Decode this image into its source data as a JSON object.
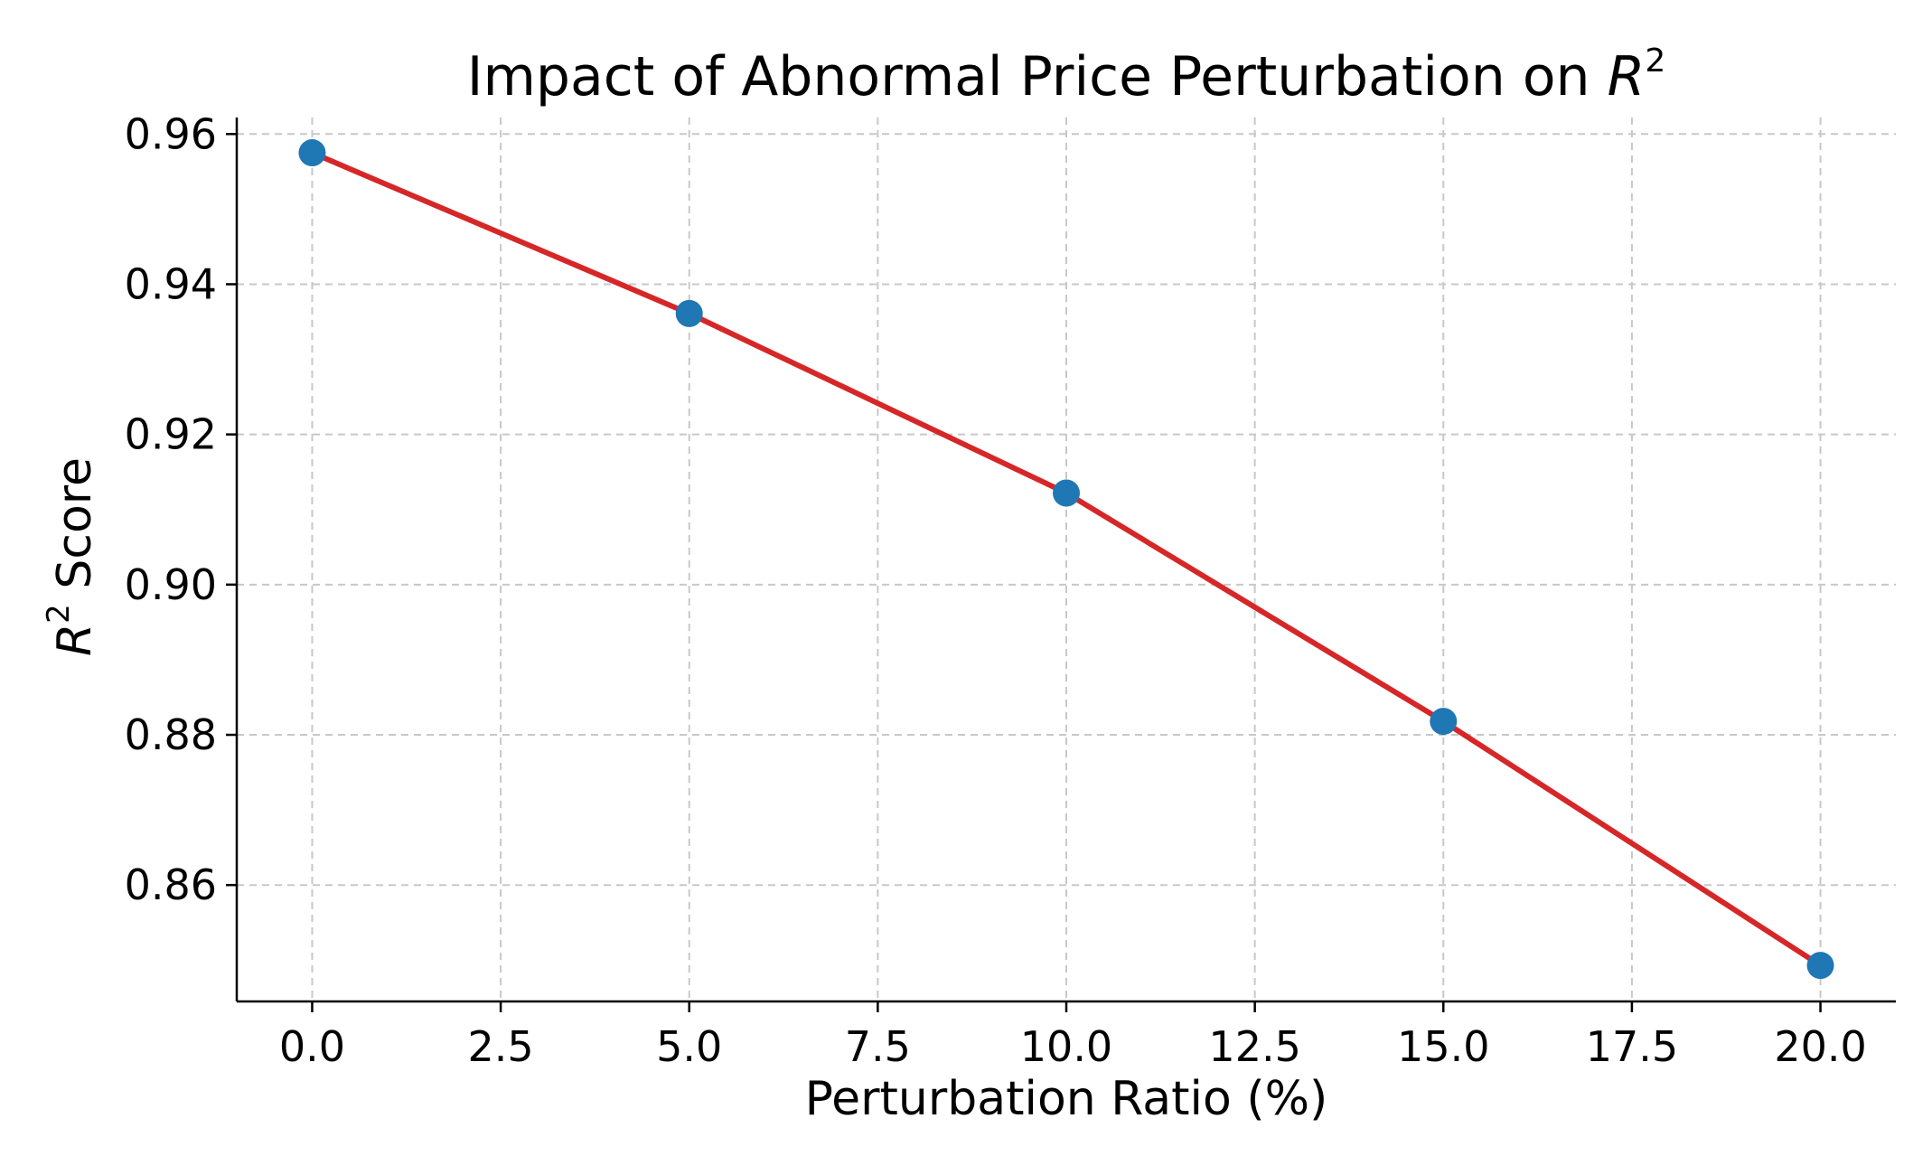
{
  "chart_data": {
    "type": "line",
    "title": "Impact of Abnormal Price Perturbation on ",
    "title_math": "R",
    "title_sup": "2",
    "xlabel": "Perturbation Ratio (%)",
    "ylabel_math": "R",
    "ylabel_sup": "2",
    "ylabel_rest": " Score",
    "xlim": [
      -1.0,
      21.0
    ],
    "ylim": [
      0.8445,
      0.9622
    ],
    "x_ticks": [
      0.0,
      2.5,
      5.0,
      7.5,
      10.0,
      12.5,
      15.0,
      17.5,
      20.0
    ],
    "x_tick_labels": [
      "0.0",
      "2.5",
      "5.0",
      "7.5",
      "10.0",
      "12.5",
      "15.0",
      "17.5",
      "20.0"
    ],
    "y_ticks": [
      0.86,
      0.88,
      0.9,
      0.92,
      0.94,
      0.96
    ],
    "y_tick_labels": [
      "0.86",
      "0.88",
      "0.90",
      "0.92",
      "0.94",
      "0.96"
    ],
    "grid": true,
    "series": [
      {
        "name": "R2 Score",
        "x": [
          0,
          5,
          10,
          15,
          20
        ],
        "values": [
          0.9575,
          0.9361,
          0.9122,
          0.8818,
          0.8493
        ],
        "line_color": "#d62728",
        "marker_color": "#1f77b4"
      }
    ]
  }
}
